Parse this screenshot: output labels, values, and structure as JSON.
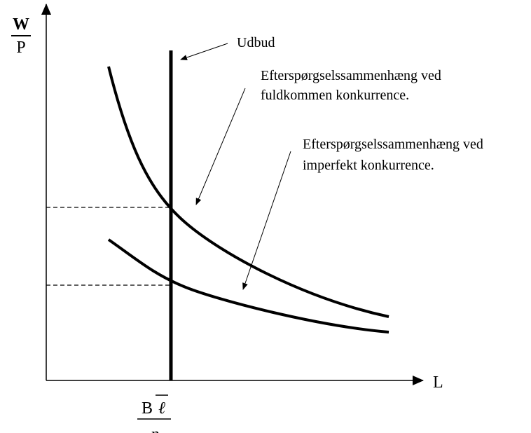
{
  "axes": {
    "y_label": {
      "numerator": "W",
      "denominator": "P"
    },
    "x_label": "L"
  },
  "annotations": {
    "supply": "Udbud",
    "demand_perfect": [
      "Efterspørgselssammenhæng ved",
      "fuldkommen konkurrence."
    ],
    "demand_imperfect": [
      "Efterspørgselssammenhæng ved",
      "imperfekt konkurrence."
    ]
  },
  "x_marker": {
    "numerator": "B",
    "symbol": "ℓ",
    "denominator": "n"
  }
}
